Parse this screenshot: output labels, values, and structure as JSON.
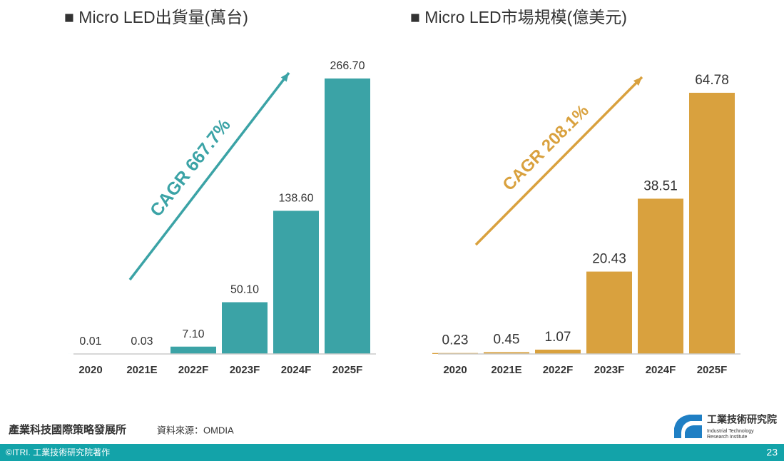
{
  "chart_data": [
    {
      "type": "bar",
      "title": "■ Micro LED出貨量(萬台)",
      "categories": [
        "2020",
        "2021E",
        "2022F",
        "2023F",
        "2024F",
        "2025F"
      ],
      "values": [
        0.01,
        0.03,
        7.1,
        50.1,
        138.6,
        266.7
      ],
      "value_labels": [
        "0.01",
        "0.03",
        "7.10",
        "50.10",
        "138.60",
        "266.70"
      ],
      "color": "#3ba3a6",
      "annotation": "CAGR 667.7%"
    },
    {
      "type": "bar",
      "title": "■ Micro LED市場規模(億美元)",
      "categories": [
        "2020",
        "2021E",
        "2022F",
        "2023F",
        "2024F",
        "2025F"
      ],
      "values": [
        0.23,
        0.45,
        1.07,
        20.43,
        38.51,
        64.78
      ],
      "value_labels": [
        "0.23",
        "0.45",
        "1.07",
        "20.43",
        "38.51",
        "64.78"
      ],
      "color": "#d9a13e",
      "annotation": "CAGR 208.1%"
    }
  ],
  "footer": {
    "org": "產業科技國際策略發展所",
    "source": "資料來源：OMDIA",
    "copyright": "©ITRI. 工業技術研究院著作",
    "page": "23"
  },
  "logo": {
    "name": "工業技術研究院",
    "line1": "Industrial Technology",
    "line2": "Research Institute"
  }
}
